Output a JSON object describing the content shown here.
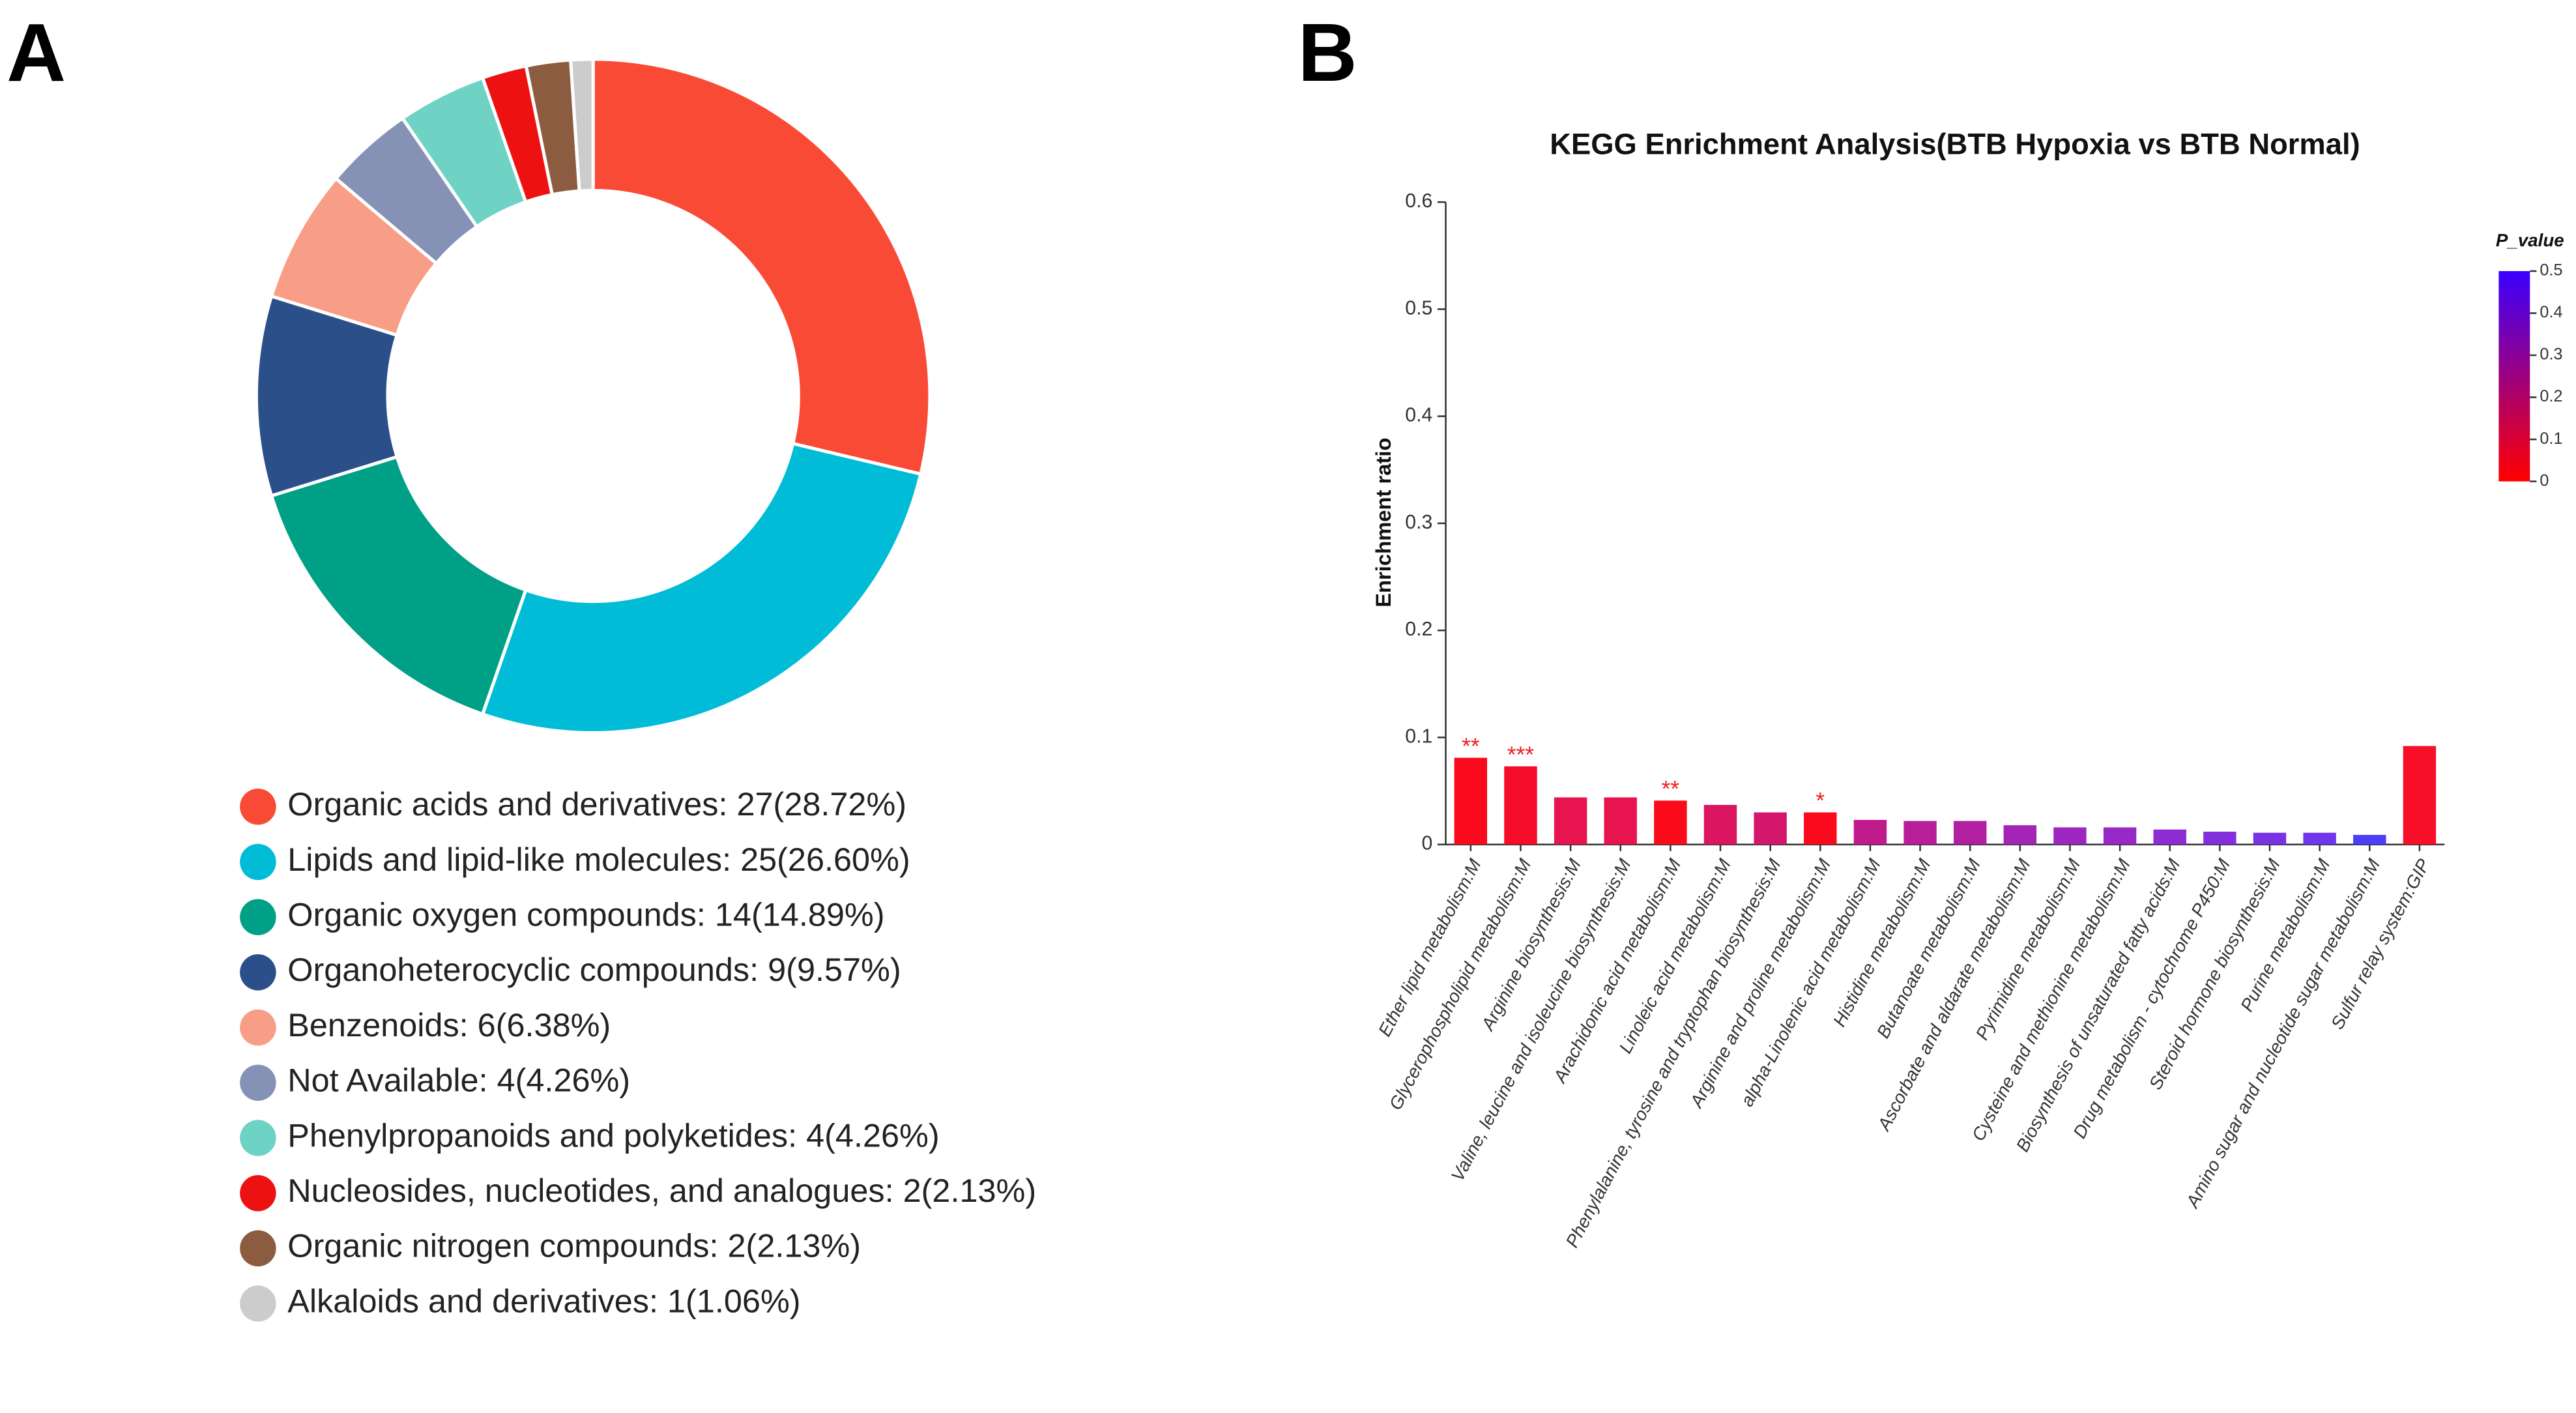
{
  "chart_data": [
    {
      "type": "donut",
      "panel": "A",
      "categories": [
        "Organic acids and derivatives: 27(28.72%)",
        "Lipids and lipid-like molecules: 25(26.60%)",
        "Organic oxygen compounds: 14(14.89%)",
        "Organoheterocyclic compounds: 9(9.57%)",
        "Benzenoids: 6(6.38%)",
        "Not Available: 4(4.26%)",
        "Phenylpropanoids and polyketides: 4(4.26%)",
        "Nucleosides, nucleotides, and analogues: 2(2.13%)",
        "Organic nitrogen compounds: 2(2.13%)",
        "Alkaloids and derivatives: 1(1.06%)"
      ],
      "values": [
        27,
        25,
        14,
        9,
        6,
        4,
        4,
        2,
        2,
        1
      ],
      "colors": [
        "#f94a35",
        "#00bcd6",
        "#00a087",
        "#2b5089",
        "#f89e86",
        "#8592b5",
        "#6ed3c4",
        "#ee1111",
        "#8c5c40",
        "#cccccc"
      ]
    },
    {
      "type": "bar",
      "panel": "B",
      "title": "KEGG Enrichment Analysis(BTB Hypoxia vs BTB Normal)",
      "y_label": "Enrichment ratio",
      "categories": [
        "Ether lipid metabolism:M",
        "Glycerophospholipid metabolism:M",
        "Arginine biosynthesis:M",
        "Valine, leucine and isoleucine biosynthesis:M",
        "Arachidonic acid metabolism:M",
        "Linoleic acid metabolism:M",
        "Phenylalanine, tyrosine and tryptophan biosynthesis:M",
        "Arginine and proline metabolism:M",
        "alpha-Linolenic acid metabolism:M",
        "Histidine metabolism:M",
        "Butanoate metabolism:M",
        "Ascorbate and aldarate metabolism:M",
        "Pyrimidine metabolism:M",
        "Cysteine and methionine metabolism:M",
        "Biosynthesis of unsaturated fatty acids:M",
        "Drug metabolism - cytochrome P450:M",
        "Steroid hormone biosynthesis:M",
        "Purine metabolism:M",
        "Amino sugar and nucleotide sugar metabolism:M",
        "Sulfur relay system:GIP"
      ],
      "values": [
        0.081,
        0.073,
        0.044,
        0.044,
        0.041,
        0.037,
        0.03,
        0.03,
        0.023,
        0.022,
        0.022,
        0.018,
        0.016,
        0.016,
        0.014,
        0.012,
        0.011,
        0.011,
        0.009,
        0.092
      ],
      "colors": [
        "#fa0a1c",
        "#f40c2a",
        "#e8144f",
        "#e8144f",
        "#fb0a1a",
        "#dc1560",
        "#d5176c",
        "#fb0a1e",
        "#c01b8c",
        "#b81e98",
        "#b21fa0",
        "#a424b5",
        "#9c27c0",
        "#9629c7",
        "#8e2cd2",
        "#8330dc",
        "#7a33e4",
        "#6f37ec",
        "#4d3ff8",
        "#f8102a"
      ],
      "annotations": [
        "**",
        "***",
        null,
        null,
        "**",
        null,
        null,
        "*",
        null,
        null,
        null,
        null,
        null,
        null,
        null,
        null,
        null,
        null,
        null,
        null
      ],
      "ylim": [
        0,
        0.6
      ],
      "yticks": [
        0,
        0.1,
        0.2,
        0.3,
        0.4,
        0.5,
        0.6
      ],
      "colorbar": {
        "title": "P_value",
        "lim": [
          0,
          0.5
        ],
        "ticks": [
          0,
          0.1,
          0.2,
          0.3,
          0.4,
          0.5
        ],
        "colors": [
          "#ff0000",
          "#3a00ff"
        ]
      }
    }
  ]
}
